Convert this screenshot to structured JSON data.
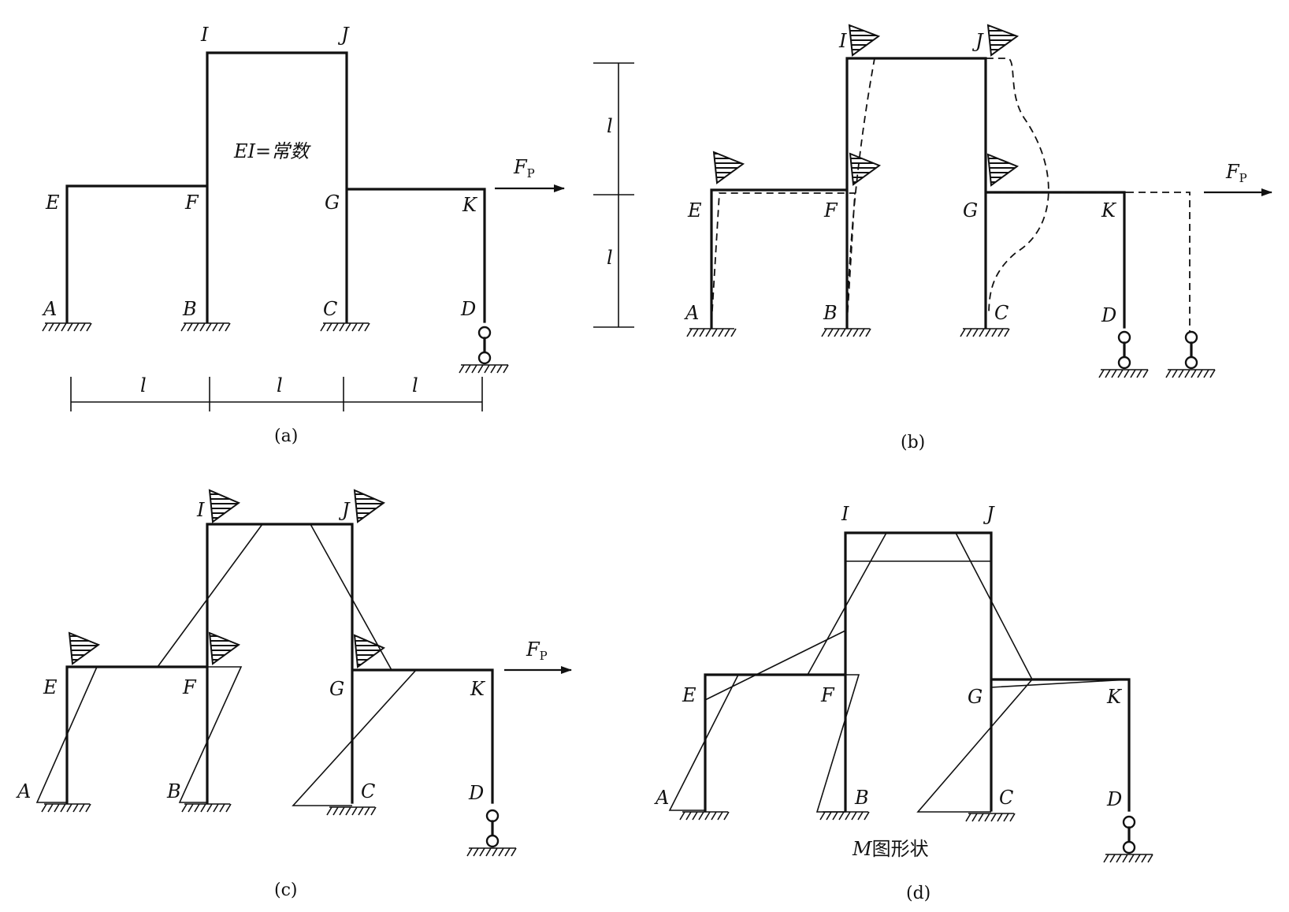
{
  "panels": {
    "a": {
      "caption": "(a)",
      "nodes": {
        "I": "I",
        "J": "J",
        "E": "E",
        "F": "F",
        "G": "G",
        "K": "K",
        "A": "A",
        "B": "B",
        "C": "C",
        "D": "D"
      },
      "ei_label": "EI=常数",
      "force_label": "F",
      "force_sub": "P",
      "dims": [
        "l",
        "l",
        "l"
      ]
    },
    "b": {
      "caption": "(b)",
      "nodes": {
        "I": "I",
        "J": "J",
        "E": "E",
        "F": "F",
        "G": "G",
        "K": "K",
        "A": "A",
        "B": "B",
        "C": "C",
        "D": "D"
      },
      "force_label": "F",
      "force_sub": "P",
      "dims": [
        "l",
        "l"
      ]
    },
    "c": {
      "caption": "(c)",
      "nodes": {
        "I": "I",
        "J": "J",
        "E": "E",
        "F": "F",
        "G": "G",
        "K": "K",
        "A": "A",
        "B": "B",
        "C": "C",
        "D": "D"
      },
      "force_label": "F",
      "force_sub": "P"
    },
    "d": {
      "caption": "(d)",
      "nodes": {
        "I": "I",
        "J": "J",
        "E": "E",
        "F": "F",
        "G": "G",
        "K": "K",
        "A": "A",
        "B": "B",
        "C": "C",
        "D": "D"
      },
      "m_label_italic": "M",
      "m_label_rest": "图形状"
    }
  }
}
